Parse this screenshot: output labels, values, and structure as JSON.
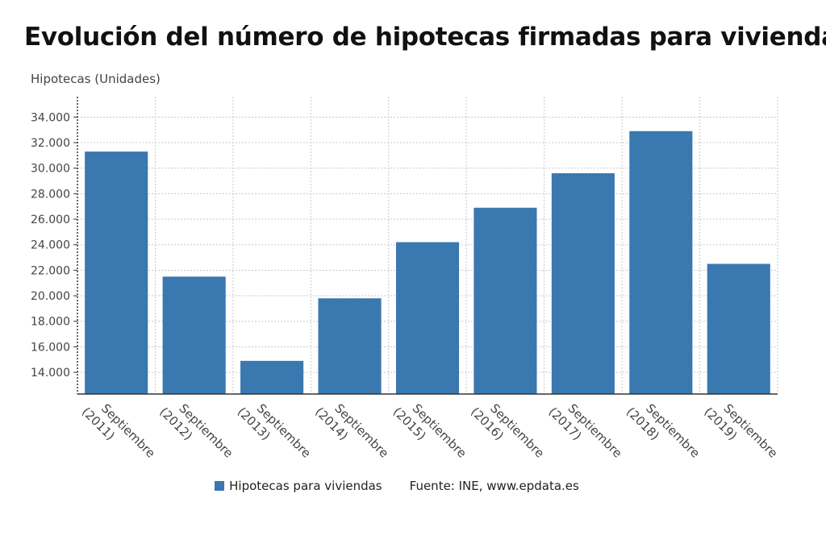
{
  "chart_data": {
    "type": "bar",
    "title": "Evolución del número de hipotecas firmadas para viviendas",
    "ylabel": "Hipotecas (Unidades)",
    "xlabel": "",
    "categories": [
      [
        "Septiembre",
        "(2011)"
      ],
      [
        "Septiembre",
        "(2012)"
      ],
      [
        "Septiembre",
        "(2013)"
      ],
      [
        "Septiembre",
        "(2014)"
      ],
      [
        "Septiembre",
        "(2015)"
      ],
      [
        "Septiembre",
        "(2016)"
      ],
      [
        "Septiembre",
        "(2017)"
      ],
      [
        "Septiembre",
        "(2018)"
      ],
      [
        "Septiembre",
        "(2019)"
      ]
    ],
    "series": [
      {
        "name": "Hipotecas para viviendas",
        "color": "#3a78b0",
        "values": [
          31300,
          21500,
          14900,
          19800,
          24200,
          26900,
          29600,
          32900,
          22500
        ]
      }
    ],
    "ylim": [
      12300,
      35600
    ],
    "yticks": [
      14000,
      16000,
      18000,
      20000,
      22000,
      24000,
      26000,
      28000,
      30000,
      32000,
      34000
    ],
    "ytick_labels": [
      "14.000",
      "16.000",
      "18.000",
      "20.000",
      "22.000",
      "24.000",
      "26.000",
      "28.000",
      "30.000",
      "32.000",
      "34.000"
    ],
    "grid": true,
    "legend_position": "bottom"
  },
  "source": "Fuente: INE, www.epdata.es"
}
